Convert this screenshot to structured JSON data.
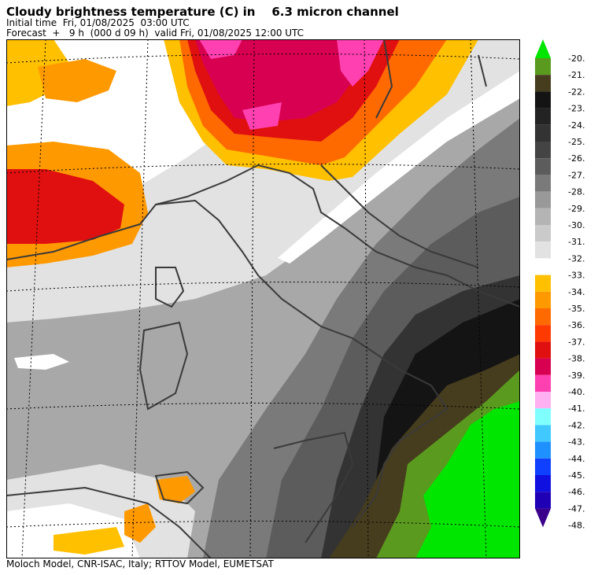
{
  "header": {
    "title": "Cloudy brightness temperature (C) in    6.3 micron channel",
    "initial_time": "Initial time  Fri, 01/08/2025  03:00 UTC",
    "forecast": "Forecast  +   9 h  (000 d 09 h)  valid Fri, 01/08/2025 12:00 UTC"
  },
  "footer": "Moloch Model, CNR-ISAC, Italy; RTTOV Model, EUMETSAT",
  "colorbar": {
    "labels": [
      "-20.",
      "-21.",
      "-22.",
      "-23.",
      "-24.",
      "-25.",
      "-26.",
      "-27.",
      "-28.",
      "-29.",
      "-30.",
      "-31.",
      "-32.",
      "-33.",
      "-34.",
      "-35.",
      "-36.",
      "-37.",
      "-38.",
      "-39.",
      "-40.",
      "-41.",
      "-42.",
      "-43.",
      "-44.",
      "-45.",
      "-46.",
      "-47.",
      "-48."
    ],
    "colors": [
      "#00e600",
      "#5a9a1e",
      "#463c1e",
      "#141414",
      "#232323",
      "#333333",
      "#444444",
      "#5c5c5c",
      "#7a7a7a",
      "#999999",
      "#b4b4b4",
      "#cacaca",
      "#e2e2e2",
      "#ffffff",
      "#ffc000",
      "#ff9900",
      "#ff6a00",
      "#ff3a00",
      "#e01010",
      "#d80050",
      "#ff40b0",
      "#ffb0f0",
      "#80ffff",
      "#40c8ff",
      "#1e90ff",
      "#1040ff",
      "#1010e0",
      "#2000b4",
      "#3a008c"
    ]
  }
}
